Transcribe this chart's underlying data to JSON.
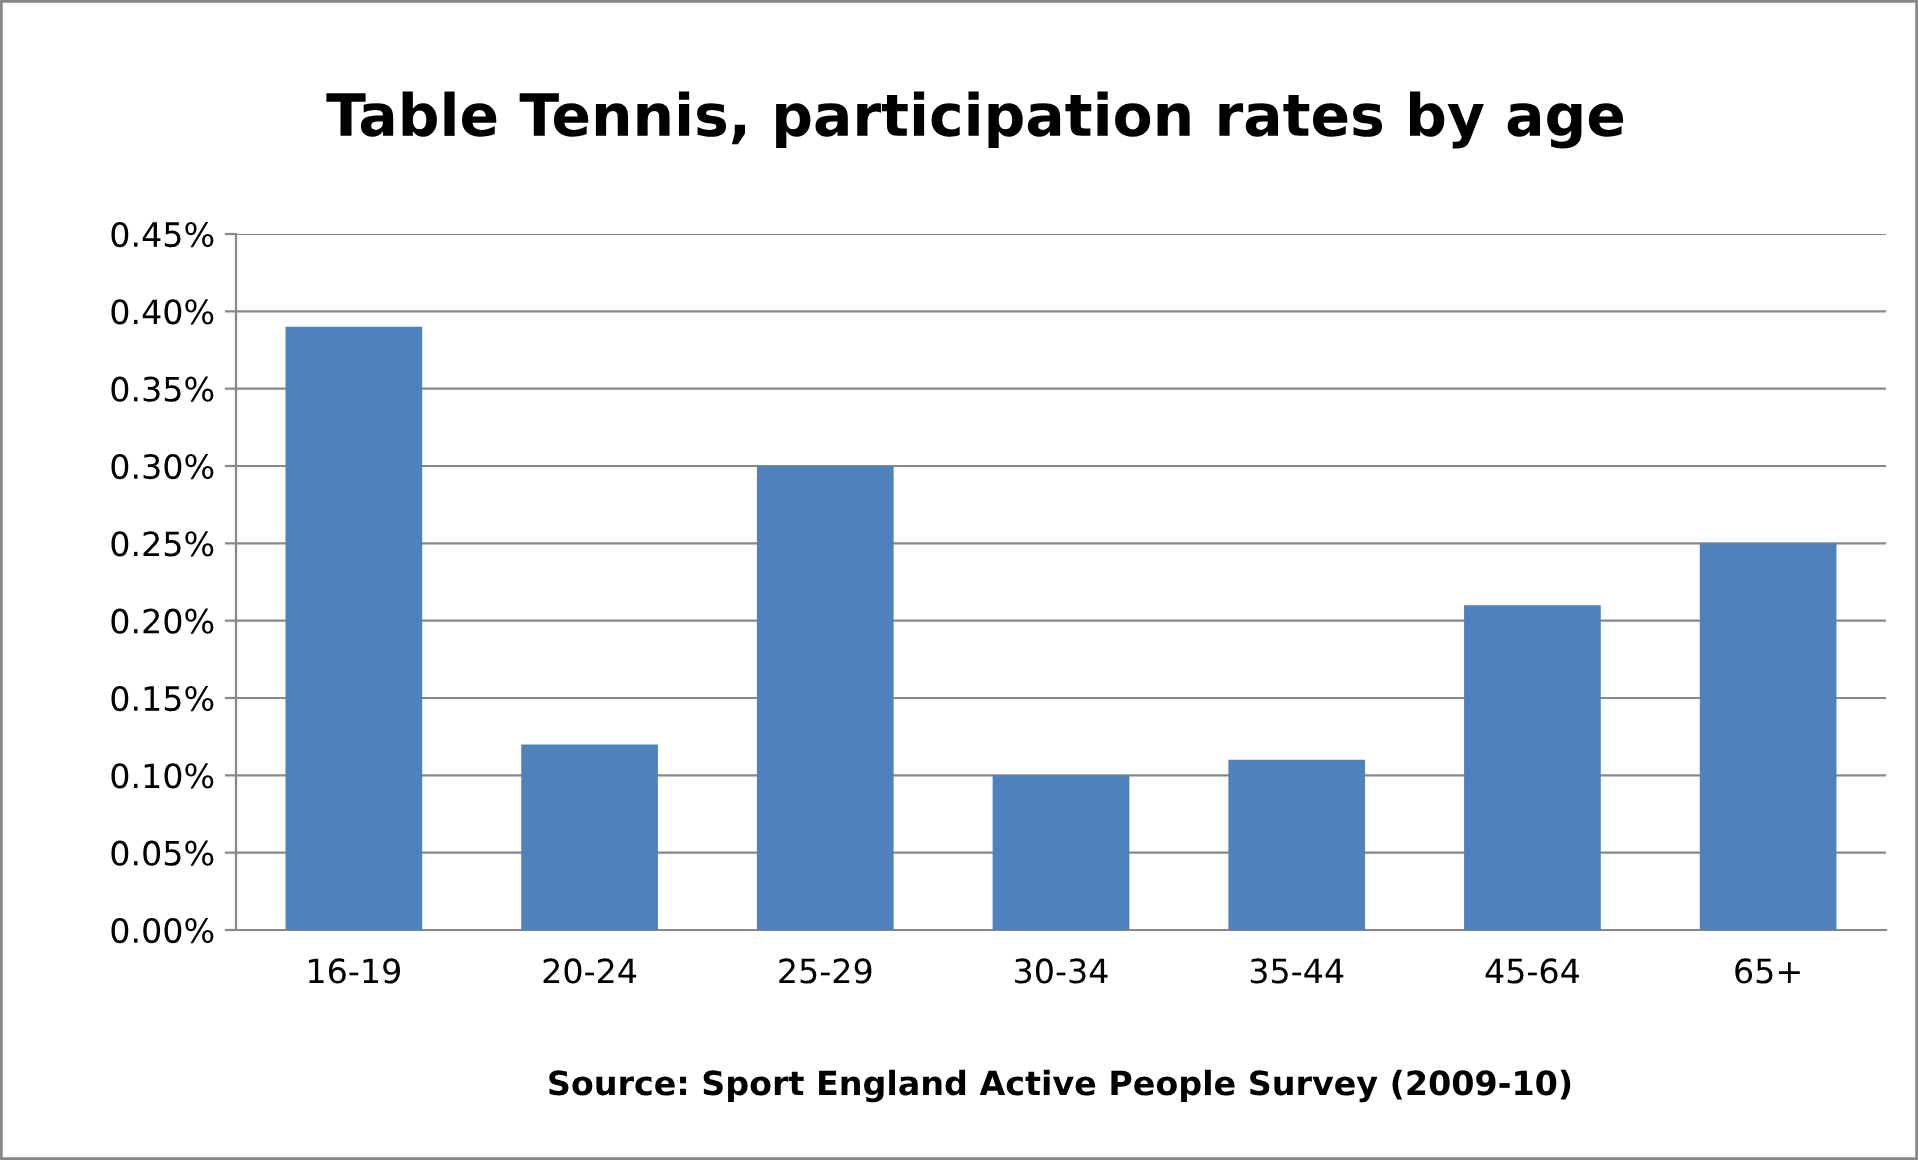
{
  "chart_data": {
    "type": "bar",
    "title": "Table Tennis, participation rates by age",
    "categories": [
      "16-19",
      "20-24",
      "25-29",
      "30-34",
      "35-44",
      "45-64",
      "65+"
    ],
    "values": [
      0.39,
      0.12,
      0.3,
      0.1,
      0.11,
      0.21,
      0.25
    ],
    "color": "#4f81bd",
    "ylim": [
      0,
      0.45
    ],
    "yticks": [
      {
        "value": 0,
        "label": "0.00%"
      },
      {
        "value": 0.05,
        "label": "0.05%"
      },
      {
        "value": 0.1,
        "label": "0.10%"
      },
      {
        "value": 0.15,
        "label": "0.15%"
      },
      {
        "value": 0.2,
        "label": "0.20%"
      },
      {
        "value": 0.25,
        "label": "0.25%"
      },
      {
        "value": 0.3,
        "label": "0.30%"
      },
      {
        "value": 0.35,
        "label": "0.35%"
      },
      {
        "value": 0.4,
        "label": "0.40%"
      },
      {
        "value": 0.45,
        "label": "0.45%"
      }
    ],
    "grid": "y",
    "annotations": [
      "Source: Sport England Active People Survey (2009-10)"
    ]
  }
}
